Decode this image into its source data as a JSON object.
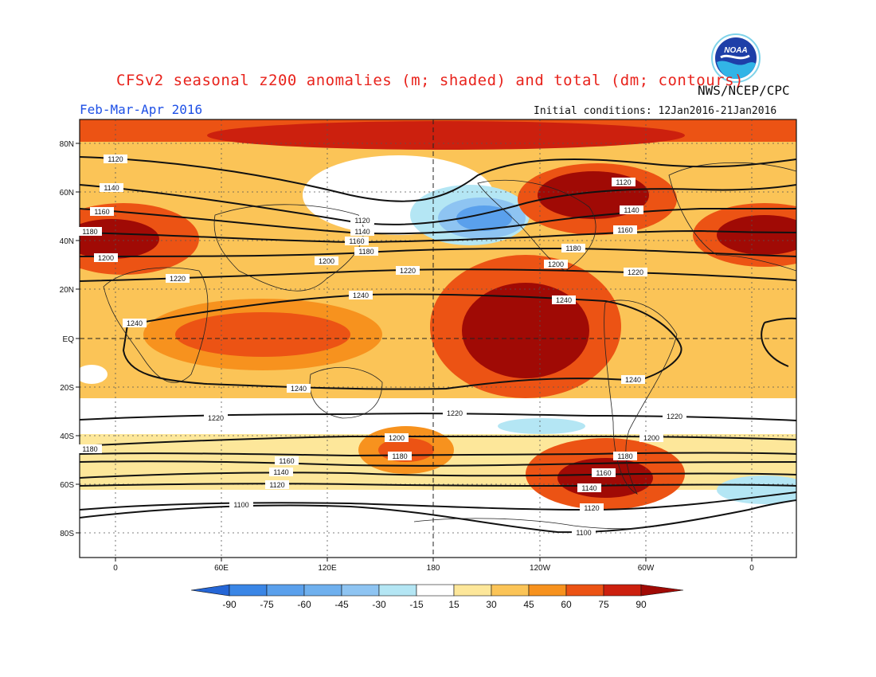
{
  "header": {
    "title": "CFSv2 seasonal z200 anomalies (m; shaded) and total (dm; contours)",
    "agency": "NWS/NCEP/CPC",
    "season": "Feb-Mar-Apr 2016",
    "initial_conditions": "Initial conditions: 12Jan2016-21Jan2016",
    "logo_text": "NOAA"
  },
  "map": {
    "lat_labels": [
      "80N",
      "60N",
      "40N",
      "20N",
      "EQ",
      "20S",
      "40S",
      "60S",
      "80S"
    ],
    "lon_labels": [
      "0",
      "60E",
      "120E",
      "180",
      "120W",
      "60W",
      "0"
    ],
    "contour_labels": [
      "1100",
      "1120",
      "1140",
      "1160",
      "1180",
      "1200",
      "1220",
      "1240"
    ],
    "colors": {
      "neg_90": "#2566d6",
      "neg_75": "#3a86e6",
      "neg_60": "#5aa0ec",
      "neg_45": "#8ec4f2",
      "neg_30": "#b4e6f4",
      "neutral": "#ffffff",
      "pos_15": "#fde79a",
      "pos_30": "#fbc457",
      "pos_45": "#f7921e",
      "pos_60": "#ec5314",
      "pos_75": "#cc200e",
      "pos_90": "#a00a05"
    }
  },
  "colorbar": {
    "labels": [
      "-90",
      "-75",
      "-60",
      "-45",
      "-30",
      "-15",
      "15",
      "30",
      "45",
      "60",
      "75",
      "90"
    ]
  }
}
